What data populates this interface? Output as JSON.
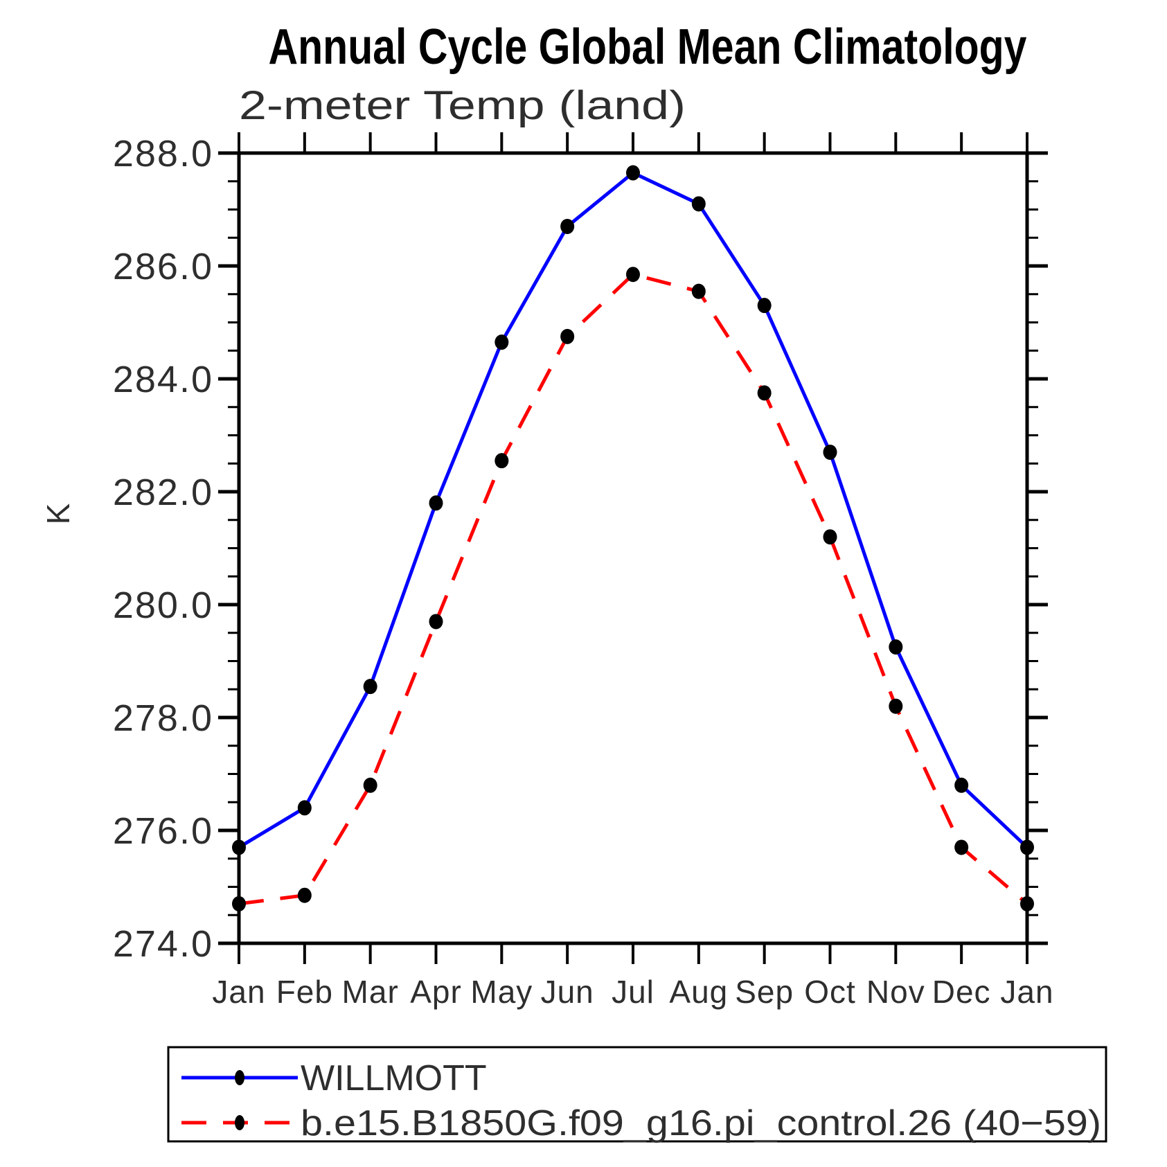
{
  "page": {
    "background": "#ffffff"
  },
  "chart_data": {
    "type": "line",
    "title": "Annual Cycle Global Mean Climatology",
    "subtitle": "2-meter Temp (land)",
    "ylabel": "K",
    "xlabel": "",
    "x_categories": [
      "Jan",
      "Feb",
      "Mar",
      "Apr",
      "May",
      "Jun",
      "Jul",
      "Aug",
      "Sep",
      "Oct",
      "Nov",
      "Dec",
      "Jan"
    ],
    "ylim": [
      274.0,
      288.0
    ],
    "y_major_step": 2.0,
    "y_minor_step": 0.5,
    "y_major_ticks": [
      274.0,
      276.0,
      278.0,
      280.0,
      282.0,
      284.0,
      286.0,
      288.0
    ],
    "ytick_labels": [
      "274.0",
      "276.0",
      "278.0",
      "280.0",
      "282.0",
      "284.0",
      "286.0",
      "288.0"
    ],
    "grid": false,
    "legend_position": "bottom",
    "axis_color": "#000000",
    "marker_shape": "filled-ellipse",
    "series": [
      {
        "name": "WILLMOTT",
        "color": "#0000ff",
        "style": "solid",
        "marker_color": "#000000",
        "values": [
          275.7,
          276.4,
          278.55,
          281.8,
          284.65,
          286.7,
          287.65,
          287.1,
          285.3,
          282.7,
          279.25,
          276.8,
          275.7
        ]
      },
      {
        "name": "b.e15.B1850G.f09_g16.pi_control.26 (40−59)",
        "color": "#ff0000",
        "style": "dashed",
        "marker_color": "#000000",
        "values": [
          274.7,
          274.85,
          276.8,
          279.7,
          282.55,
          284.75,
          285.85,
          285.55,
          283.75,
          281.2,
          278.2,
          275.7,
          274.7
        ]
      }
    ]
  }
}
